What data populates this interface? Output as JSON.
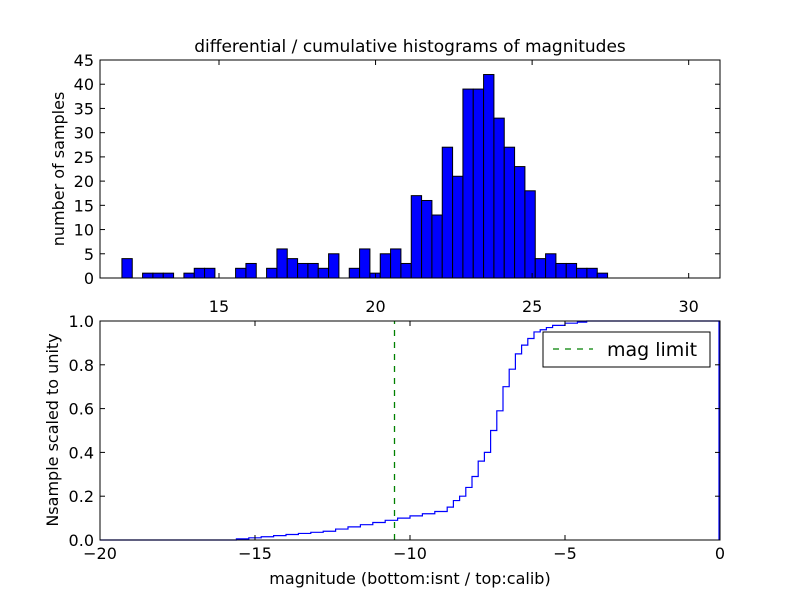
{
  "figure": {
    "title": "differential / cumulative histograms of magnitudes"
  },
  "chart_data": [
    {
      "type": "bar",
      "title": "differential / cumulative histograms of magnitudes",
      "xlabel": "",
      "ylabel": "number of samples",
      "xlim": [
        11.2,
        31.0
      ],
      "ylim": [
        0,
        45
      ],
      "xticks": [
        15,
        20,
        25,
        30
      ],
      "yticks": [
        0,
        5,
        10,
        15,
        20,
        25,
        30,
        35,
        40,
        45
      ],
      "x_axis_position": "top",
      "grid": false,
      "bar_color": "#0000ff",
      "bin_width": 0.33,
      "bin_starts": [
        11.9,
        12.23,
        12.56,
        12.89,
        13.22,
        13.55,
        13.88,
        14.21,
        14.54,
        14.87,
        15.2,
        15.53,
        15.86,
        16.19,
        16.52,
        16.85,
        17.18,
        17.51,
        17.84,
        18.17,
        18.5,
        18.83,
        19.16,
        19.49,
        19.82,
        20.15,
        20.48,
        20.81,
        21.14,
        21.47,
        21.8,
        22.13,
        22.46,
        22.79,
        23.12,
        23.45,
        23.78,
        24.11,
        24.44,
        24.77,
        25.1,
        25.43,
        25.76,
        26.09,
        26.42,
        26.75,
        27.08,
        27.41,
        27.74,
        28.07,
        28.4,
        28.73
      ],
      "values": [
        4,
        0,
        1,
        1,
        1,
        0,
        1,
        2,
        2,
        0,
        0,
        2,
        3,
        0,
        2,
        6,
        4,
        3,
        3,
        2,
        5,
        0,
        2,
        6,
        1,
        5,
        6,
        3,
        17,
        16,
        13,
        27,
        21,
        39,
        39,
        42,
        33,
        27,
        23,
        18,
        4,
        5,
        3,
        3,
        2,
        2,
        1,
        0,
        0,
        0,
        0,
        0
      ]
    },
    {
      "type": "line",
      "title": "",
      "xlabel": "magnitude (bottom:isnt / top:calib)",
      "ylabel": "Nsample scaled to unity",
      "xlim": [
        -20,
        0
      ],
      "ylim": [
        0,
        1.0
      ],
      "xticks": [
        -20,
        -15,
        -10,
        -5,
        0
      ],
      "yticks": [
        0.0,
        0.2,
        0.4,
        0.6,
        0.8,
        1.0
      ],
      "grid": false,
      "legend_position": "top-right",
      "series": [
        {
          "style": "step",
          "color": "#0000ff",
          "x": [
            -20.0,
            -15.6,
            -15.2,
            -14.8,
            -14.4,
            -14.0,
            -13.6,
            -13.2,
            -12.8,
            -12.4,
            -12.0,
            -11.6,
            -11.2,
            -10.8,
            -10.4,
            -10.0,
            -9.6,
            -9.2,
            -8.8,
            -8.6,
            -8.4,
            -8.2,
            -8.0,
            -7.8,
            -7.6,
            -7.4,
            -7.2,
            -7.0,
            -6.8,
            -6.6,
            -6.4,
            -6.2,
            -6.0,
            -5.8,
            -5.6,
            -5.4,
            -5.0,
            -4.6,
            -4.3
          ],
          "y": [
            0.0,
            0.005,
            0.01,
            0.015,
            0.02,
            0.025,
            0.03,
            0.035,
            0.04,
            0.05,
            0.06,
            0.07,
            0.08,
            0.09,
            0.1,
            0.11,
            0.12,
            0.13,
            0.15,
            0.18,
            0.2,
            0.24,
            0.29,
            0.36,
            0.4,
            0.5,
            0.59,
            0.7,
            0.78,
            0.85,
            0.89,
            0.92,
            0.95,
            0.96,
            0.97,
            0.98,
            0.99,
            0.995,
            1.0
          ]
        },
        {
          "name": "mag limit",
          "style": "dashed-vertical",
          "color": "#008000",
          "x": [
            -10.5,
            -10.5
          ],
          "y": [
            0,
            1.0
          ]
        }
      ]
    }
  ]
}
